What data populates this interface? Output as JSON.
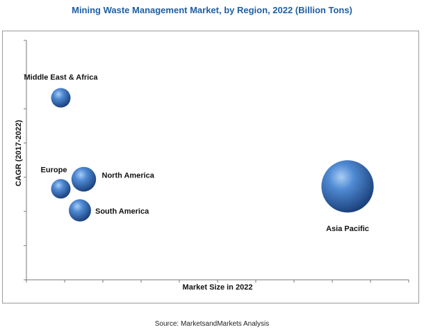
{
  "title": "Mining Waste Management Market, by Region, 2022 (Billion Tons)",
  "source": "Source: MarketsandMarkets Analysis",
  "chart_data": {
    "type": "scatter",
    "title": "Mining Waste Management Market, by Region, 2022 (Billion Tons)",
    "xlabel": "Market Size in 2022",
    "ylabel": "CAGR (2017-2022)",
    "grid": false,
    "legend": "none",
    "bubble_color": "#3f78c4",
    "points": [
      {
        "label": "Middle East & Africa",
        "x": 0.09,
        "y": 0.76,
        "size": 1
      },
      {
        "label": "Europe",
        "x": 0.09,
        "y": 0.38,
        "size": 1
      },
      {
        "label": "North America",
        "x": 0.15,
        "y": 0.42,
        "size": 1.6
      },
      {
        "label": "South America",
        "x": 0.14,
        "y": 0.29,
        "size": 1.3
      },
      {
        "label": "Asia Pacific",
        "x": 0.84,
        "y": 0.39,
        "size": 7.2
      }
    ]
  }
}
